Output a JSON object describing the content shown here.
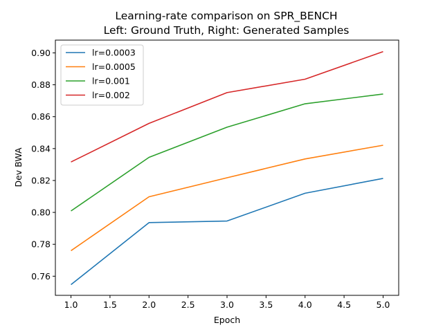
{
  "chart_data": {
    "type": "line",
    "title": "Learning-rate comparison on SPR_BENCH",
    "subtitle": "Left: Ground Truth, Right: Generated Samples",
    "xlabel": "Epoch",
    "ylabel": "Dev BWA",
    "x": [
      1,
      2,
      3,
      4,
      5
    ],
    "xlim": [
      0.8,
      5.2
    ],
    "ylim": [
      0.748,
      0.908
    ],
    "xticks": [
      "1.0",
      "1.5",
      "2.0",
      "2.5",
      "3.0",
      "3.5",
      "4.0",
      "4.5",
      "5.0"
    ],
    "yticks": [
      "0.76",
      "0.78",
      "0.80",
      "0.82",
      "0.84",
      "0.86",
      "0.88",
      "0.90"
    ],
    "grid": false,
    "legend_position": "upper-left",
    "series": [
      {
        "name": "lr=0.0003",
        "color": "#1f77b4",
        "values": [
          0.7547,
          0.7936,
          0.7946,
          0.812,
          0.8213
        ]
      },
      {
        "name": "lr=0.0005",
        "color": "#ff7f0e",
        "values": [
          0.776,
          0.8098,
          0.8217,
          0.8335,
          0.8421
        ]
      },
      {
        "name": "lr=0.001",
        "color": "#2ca02c",
        "values": [
          0.8009,
          0.8345,
          0.8534,
          0.8681,
          0.8742
        ]
      },
      {
        "name": "lr=0.002",
        "color": "#d62728",
        "values": [
          0.8316,
          0.8558,
          0.8751,
          0.8835,
          0.9008
        ]
      }
    ]
  }
}
